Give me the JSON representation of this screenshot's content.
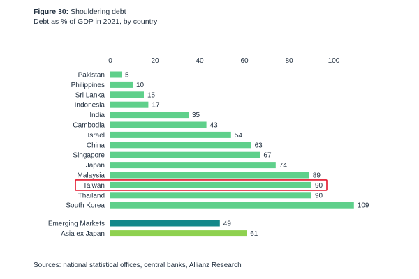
{
  "header": {
    "figure_label": "Figure 30:",
    "title": "Shouldering debt",
    "subtitle": "Debt as % of GDP in 2021, by country"
  },
  "source": "Sources: national statistical offices, central banks, Allianz Research",
  "chart_data": {
    "type": "bar",
    "orientation": "horizontal",
    "title": "Shouldering debt",
    "subtitle": "Debt as % of GDP in 2021, by country",
    "xlabel": "",
    "ylabel": "",
    "xlim": [
      0,
      110
    ],
    "x_ticks": [
      0,
      20,
      40,
      60,
      80,
      100
    ],
    "grid": false,
    "legend": "none",
    "colors": {
      "country": "#5fd08b",
      "emerging_markets": "#13888a",
      "asia_ex_japan": "#8fd14f",
      "highlight": "#e3142a"
    },
    "highlighted_category": "Taiwan",
    "categories": [
      "Pakistan",
      "Philippines",
      "Sri Lanka",
      "Indonesia",
      "India",
      "Cambodia",
      "Israel",
      "China",
      "Singapore",
      "Japan",
      "Malaysia",
      "Taiwan",
      "Thailand",
      "South Korea",
      "Emerging Markets",
      "Asia ex Japan"
    ],
    "values": [
      5,
      10,
      15,
      17,
      35,
      43,
      54,
      63,
      67,
      74,
      89,
      90,
      90,
      109,
      49,
      61
    ]
  }
}
